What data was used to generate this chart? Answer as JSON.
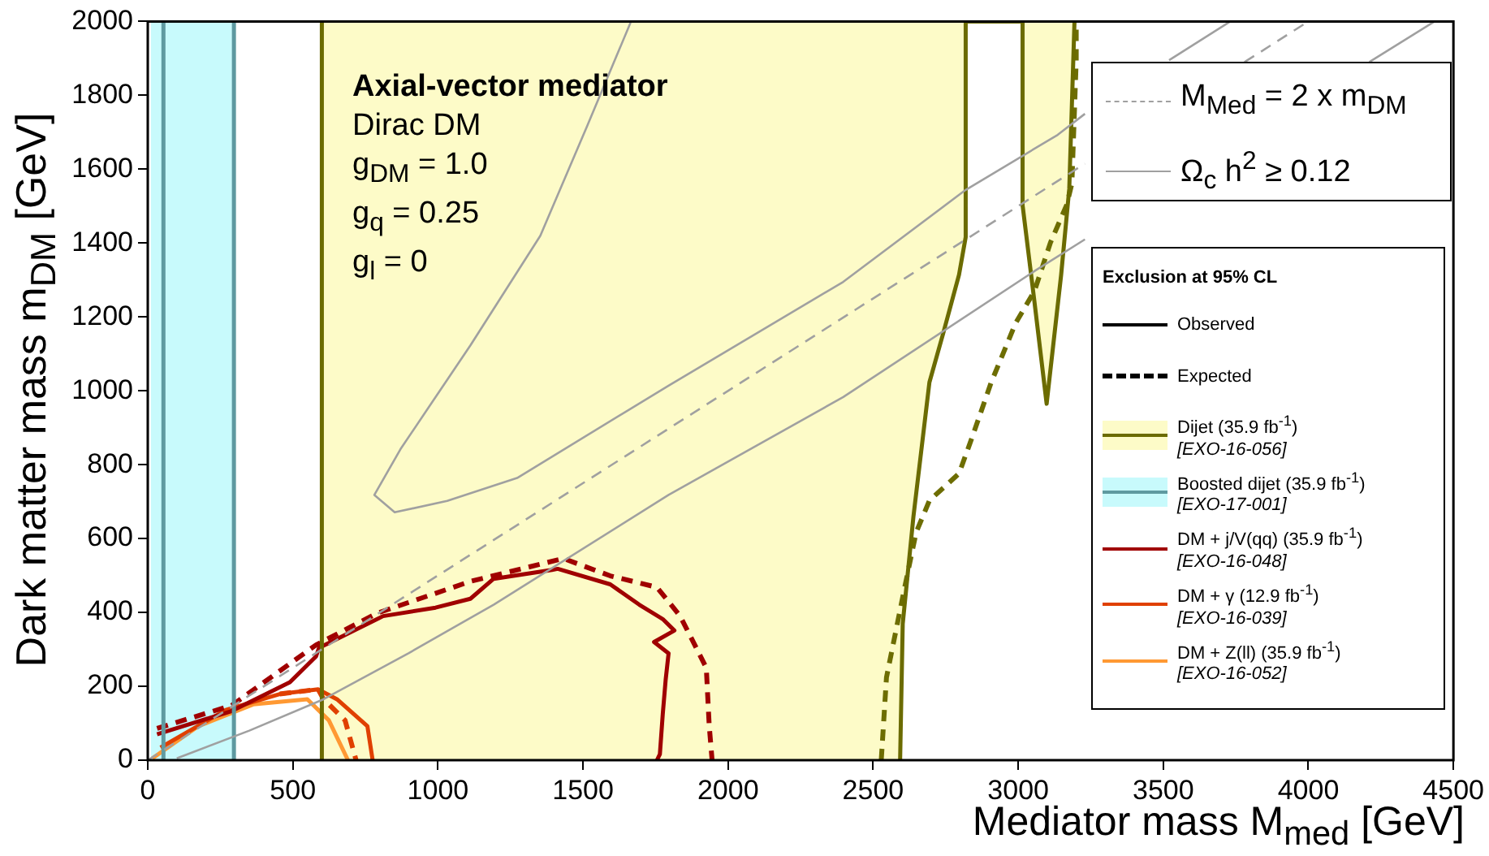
{
  "chart_data": {
    "type": "line",
    "title": "Axial-vector mediator",
    "subtitle": "Dirac DM",
    "xlabel": "Mediator mass M$_{med}$ [GeV]",
    "ylabel": "Dark matter mass m$_{DM}$ [GeV]",
    "legend_title": "Exclusion at 95% CL",
    "annotations": [
      "g$_{DM}$ = 1.0",
      "g$_{q}$ = 0.25",
      "g$_{l}$ = 0",
      "Observed",
      "Expected"
    ],
    "xlim": [
      0,
      4500
    ],
    "ylim": [
      0,
      2000
    ],
    "xticks": [
      0,
      500,
      1000,
      1500,
      2000,
      2500,
      3000,
      3500,
      4000,
      4500
    ],
    "yticks": [
      0,
      200,
      400,
      600,
      800,
      1000,
      1200,
      1400,
      1600,
      1800,
      2000
    ],
    "grid": false,
    "legend": "right",
    "marker": "none",
    "series": [
      {
        "name": "M$_{Med}$ = 2 x m$_{DM}$",
        "line_style": "dashed",
        "color": "#a0a0a0",
        "x": [
          0,
          3230,
          3500,
          3780,
          4000
        ],
        "values": [
          0,
          1615,
          null,
          1890,
          2000
        ]
      },
      {
        "name": "Ω$_{c}$ h$^{2}$ ≥ 0.12",
        "line_style": "solid",
        "color": "#a0a0a0",
        "x": [
          1664,
          1514,
          1353,
          1112,
          871,
          781,
          851,
          1032,
          1273,
          1795,
          2397,
          2819,
          3136,
          3230,
          3400,
          3520,
          3731
        ],
        "values": [
          1997,
          1716,
          1420,
          1123,
          842,
          718,
          671,
          702,
          764,
          1014,
          1295,
          1544,
          1693,
          1750,
          null,
          1895,
          2000
        ]
      },
      {
        "line_style": "solid",
        "color": "#a0a0a0",
        "x": [
          100,
          350,
          606,
          900,
          1192,
          1795,
          2397,
          3060,
          3230,
          3700,
          4210,
          4435
        ],
        "values": [
          5,
          80,
          165,
          290,
          421,
          718,
          983,
          1326,
          1410,
          null,
          1890,
          2000
        ]
      },
      {
        "name": "Dijet (35.9 fb$^{-1}$) [EXO-16-056]",
        "type": "area",
        "color": "#fdfbc8",
        "x": [
          600,
          600,
          2593,
          2602,
          2639,
          2694,
          2741,
          2796,
          2819,
          2819
        ],
        "values": [
          2000,
          0,
          0,
          369,
          660,
          1023,
          1154,
          1314,
          1416,
          2000
        ]
      },
      {
        "type": "area",
        "color": "#fdfbc8",
        "x": [
          3015,
          3015,
          3056,
          3098,
          3148,
          3176,
          3194
        ],
        "values": [
          2000,
          1503,
          1241,
          965,
          1314,
          1547,
          2000
        ]
      },
      {
        "line_style": "solid",
        "color": "#6b6b00",
        "x": [
          600,
          600
        ],
        "values": [
          0,
          2000
        ]
      },
      {
        "line_style": "solid",
        "color": "#6b6b00",
        "x": [
          2593,
          2602,
          2639,
          2694,
          2741,
          2796,
          2819,
          2819,
          3015,
          3015,
          3056,
          3098,
          3148,
          3176,
          3194
        ],
        "values": [
          0,
          369,
          660,
          1023,
          1154,
          1314,
          1416,
          2000,
          2000,
          1503,
          1241,
          965,
          1314,
          1547,
          2000
        ]
      },
      {
        "line_style": "dashed",
        "color": "#6d6d02",
        "x": [
          2528,
          2546,
          2602,
          2648,
          2694,
          2796,
          2843,
          2907,
          2991,
          3056,
          3111,
          3167,
          3185,
          3200,
          3200
        ],
        "values": [
          0,
          224,
          442,
          616,
          703,
          776,
          878,
          1023,
          1183,
          1270,
          1401,
          1503,
          1561,
          1895,
          2000
        ]
      },
      {
        "name": "Boosted dijet (35.9 fb$^{-1}$) [EXO-17-001]",
        "type": "area",
        "color": "#c8fafc",
        "x": [
          10,
          10,
          297,
          297
        ],
        "values": [
          2000,
          0,
          0,
          2000
        ]
      },
      {
        "line_style": "solid",
        "color": "#5f9aa0",
        "x": [
          54,
          54
        ],
        "values": [
          0,
          2000
        ]
      },
      {
        "line_style": "solid",
        "color": "#5e99a0",
        "x": [
          297,
          297
        ],
        "values": [
          2000,
          0
        ]
      },
      {
        "name": "DM + j/V(qq) (35.9 fb$^{-1}$) [EXO-16-048]",
        "line_style": "solid",
        "color": "#a00000",
        "x": [
          32,
          289,
          490,
          580,
          590,
          811,
          992,
          1112,
          1192,
          1393,
          1413,
          1594,
          1694,
          1775,
          1815,
          1745,
          1795,
          1785,
          1775,
          1765,
          1755
        ],
        "values": [
          70,
          133,
          211,
          281,
          304,
          390,
          413,
          437,
          491,
          515,
          518,
          476,
          421,
          382,
          351,
          320,
          289,
          218,
          125,
          16,
          0
        ]
      },
      {
        "line_style": "dashed",
        "color": "#a00000",
        "x": [
          32,
          289,
          580,
          791,
          1112,
          1433,
          1594,
          1755,
          1835,
          1925,
          1935,
          1945
        ],
        "values": [
          86,
          148,
          312,
          398,
          484,
          546,
          499,
          468,
          390,
          250,
          94,
          0
        ]
      },
      {
        "name": "DM + γ (12.9 fb$^{-1}$) [EXO-16-039]",
        "line_style": "solid",
        "color": "#e04000",
        "x": [
          44,
          269,
          455,
          587,
          652,
          757,
          775
        ],
        "values": [
          34,
          136,
          179,
          192,
          165,
          92,
          0
        ]
      },
      {
        "line_style": "dashed",
        "color": "#e04000",
        "x": [
          455,
          587,
          606,
          680,
          718
        ],
        "values": [
          179,
          192,
          165,
          108,
          0
        ]
      },
      {
        "name": "DM + Z(ll) (35.9 fb$^{-1}$) [EXO-16-052]",
        "line_style": "solid",
        "color": "#ff9933",
        "x": [
          16,
          174,
          363,
          550,
          624,
          690
        ],
        "values": [
          5,
          92,
          151,
          165,
          108,
          0
        ]
      }
    ]
  }
}
